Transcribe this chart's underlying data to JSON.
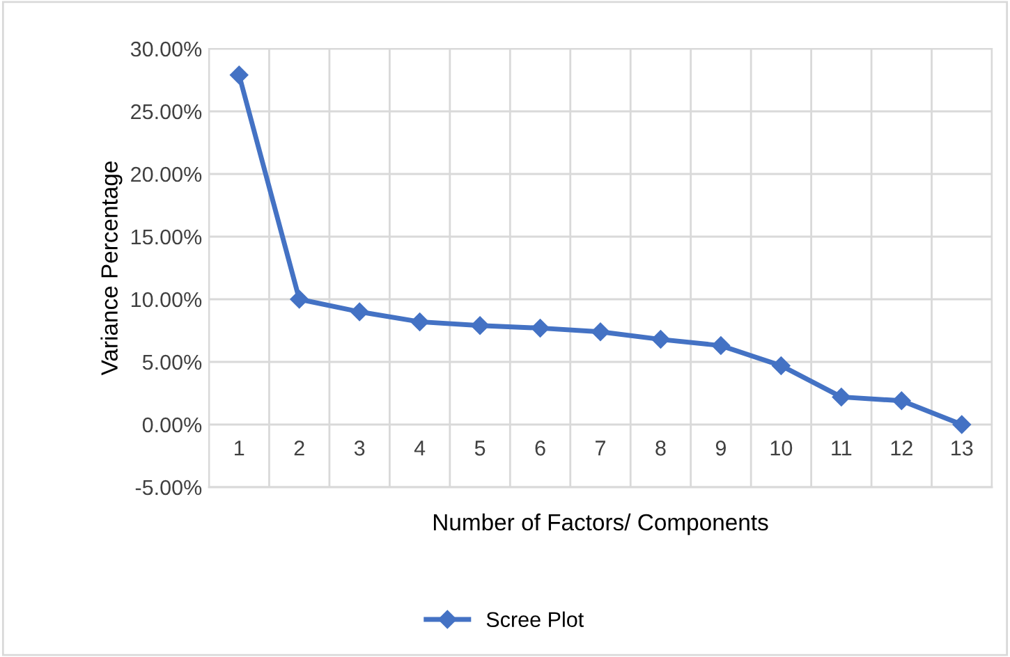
{
  "chart_data": {
    "type": "line",
    "xlabel": "Number of Factors/ Components",
    "ylabel": "Variance Percentage",
    "categories": [
      "1",
      "2",
      "3",
      "4",
      "5",
      "6",
      "7",
      "8",
      "9",
      "10",
      "11",
      "12",
      "13"
    ],
    "series": [
      {
        "name": "Scree Plot",
        "color": "#4472c4",
        "values": [
          27.9,
          10.0,
          9.0,
          8.2,
          7.9,
          7.7,
          7.4,
          6.8,
          6.3,
          4.7,
          2.2,
          1.9,
          0.0
        ]
      }
    ],
    "ylim": [
      -5,
      30
    ],
    "yticks": [
      {
        "value": -5,
        "label": "-5.00%"
      },
      {
        "value": 0,
        "label": "0.00%"
      },
      {
        "value": 5,
        "label": "5.00%"
      },
      {
        "value": 10,
        "label": "10.00%"
      },
      {
        "value": 15,
        "label": "15.00%"
      },
      {
        "value": 20,
        "label": "20.00%"
      },
      {
        "value": 25,
        "label": "25.00%"
      },
      {
        "value": 30,
        "label": "30.00%"
      }
    ],
    "grid": true,
    "legend": "bottom",
    "marker": "diamond",
    "line_style": "solid"
  }
}
